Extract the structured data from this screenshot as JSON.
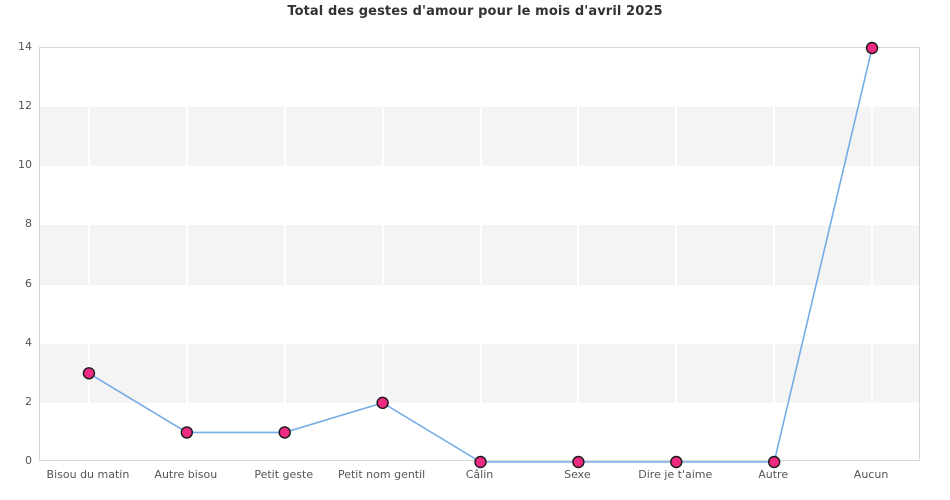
{
  "chart_data": {
    "type": "line",
    "title": "Total des gestes d'amour pour le mois d'avril 2025",
    "categories": [
      "Bisou du matin",
      "Autre bisou",
      "Petit geste",
      "Petit nom gentil",
      "Câlin",
      "Sexe",
      "Dire je t'aime",
      "Autre",
      "Aucun"
    ],
    "values": [
      3,
      1,
      1,
      2,
      0,
      0,
      0,
      0,
      14
    ],
    "xlabel": "",
    "ylabel": "",
    "ylim": [
      0,
      14
    ],
    "ytick_step": 2,
    "yticks": [
      0,
      2,
      4,
      6,
      8,
      10,
      12,
      14
    ],
    "legend": "none",
    "grid": "alternating horizontal gray bands with white vertical gridlines at each category",
    "marker_shape": "circle",
    "colors": {
      "line": "#74ace6",
      "marker_fill": "#ee2b82",
      "marker_stroke": "#1a1a1a",
      "band": "#f4f4f4",
      "gridline": "#ffffff",
      "plot_border": "#d6d6d6",
      "title_text": "#333333",
      "tick_label_text": "#555555",
      "background": "#ffffff"
    }
  }
}
